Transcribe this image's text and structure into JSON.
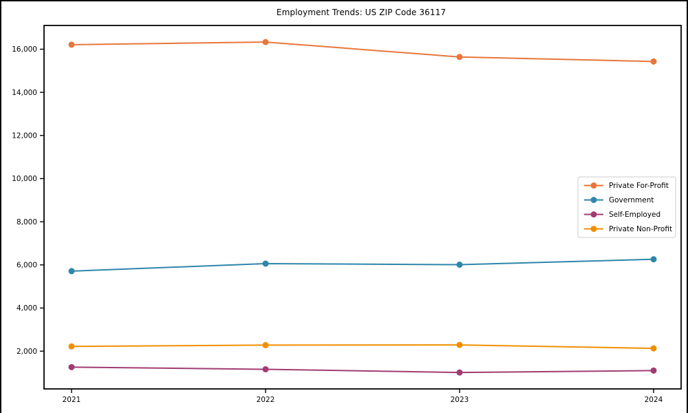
{
  "chart_data": {
    "type": "line",
    "title": "Employment Trends: US ZIP Code 36117",
    "xlabel": "",
    "ylabel": "",
    "x": [
      2021,
      2022,
      2023,
      2024
    ],
    "series": [
      {
        "name": "Private For-Profit",
        "color": "#E8763A",
        "values": [
          16210,
          16330,
          15640,
          15430
        ]
      },
      {
        "name": "Government",
        "color": "#2E86AB",
        "values": [
          5710,
          6060,
          6010,
          6260
        ]
      },
      {
        "name": "Self-Employed",
        "color": "#A23B72",
        "values": [
          1260,
          1160,
          1010,
          1100
        ]
      },
      {
        "name": "Private Non-Profit",
        "color": "#F18F01",
        "values": [
          2220,
          2280,
          2290,
          2130
        ]
      }
    ],
    "yticks": [
      2000,
      4000,
      6000,
      8000,
      10000,
      12000,
      14000,
      16000
    ],
    "ytick_labels": [
      "2,000",
      "4,000",
      "6,000",
      "8,000",
      "10,000",
      "12,000",
      "14,000",
      "16,000"
    ],
    "xtick_labels": [
      "2021",
      "2022",
      "2023",
      "2024"
    ],
    "ylim": [
      250,
      17100
    ],
    "grid": false,
    "marker": "circle",
    "legend_position": "center right",
    "axis_color": "#000000",
    "background_color": "#ffffff"
  }
}
